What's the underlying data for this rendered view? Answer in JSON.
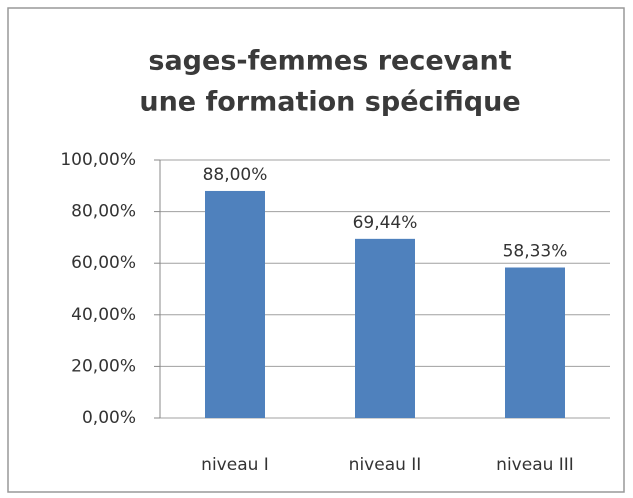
{
  "chart_data": {
    "type": "bar",
    "title": [
      "sages-femmes recevant",
      "une formation spécifique"
    ],
    "categories": [
      "niveau I",
      "niveau II",
      "niveau III"
    ],
    "values": [
      88,
      69.44,
      58.33
    ],
    "value_labels": [
      "88,00%",
      "69,44%",
      "58,33%"
    ],
    "color": "#4f81bd",
    "ylim": [
      0,
      100
    ],
    "yticks": [
      {
        "value": 0,
        "label": "0,00%"
      },
      {
        "value": 20,
        "label": "20,00%"
      },
      {
        "value": 40,
        "label": "40,00%"
      },
      {
        "value": 60,
        "label": "60,00%"
      },
      {
        "value": 80,
        "label": "80,00%"
      },
      {
        "value": 100,
        "label": "100,00%"
      }
    ],
    "grid": true
  }
}
